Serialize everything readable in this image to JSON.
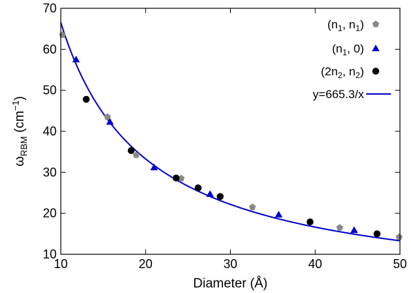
{
  "chart_data": {
    "type": "scatter",
    "xlabel": "Diameter (Å)",
    "ylabel": {
      "main": "ω",
      "sub": "RBM",
      "unit_open": " (cm",
      "unit_sup": "−1",
      "unit_close": ")"
    },
    "xlim": [
      10,
      50
    ],
    "ylim": [
      10,
      70
    ],
    "xticks": [
      10,
      20,
      30,
      40,
      50
    ],
    "yticks": [
      10,
      20,
      30,
      40,
      50,
      60,
      70
    ],
    "grid": false,
    "legend_position": "top-right",
    "series": [
      {
        "name": "(n1, n1)",
        "label_parts": [
          [
            "(n",
            ""
          ],
          [
            "1",
            "sub"
          ],
          [
            ", n",
            ""
          ],
          [
            "1",
            "sub"
          ],
          [
            ")",
            ""
          ]
        ],
        "marker": "pentagon",
        "color": "#888888",
        "x": [
          10.2,
          15.5,
          18.9,
          24.2,
          32.6,
          42.9,
          49.9
        ],
        "y": [
          63.5,
          43.5,
          34.2,
          28.5,
          21.5,
          16.5,
          14.2
        ]
      },
      {
        "name": "(n1, 0)",
        "label_parts": [
          [
            "(n",
            ""
          ],
          [
            "1",
            "sub"
          ],
          [
            ", 0)",
            ""
          ]
        ],
        "marker": "triangle",
        "color": "#0000cc",
        "x": [
          11.8,
          15.8,
          21.0,
          27.6,
          35.7,
          44.6
        ],
        "y": [
          57.5,
          42.3,
          31.2,
          24.7,
          19.7,
          15.9
        ]
      },
      {
        "name": "(2n2, n2)",
        "label_parts": [
          [
            "(2n",
            ""
          ],
          [
            "2",
            "sub"
          ],
          [
            ", n",
            ""
          ],
          [
            "2",
            "sub"
          ],
          [
            ")",
            ""
          ]
        ],
        "marker": "circle",
        "color": "#000000",
        "x": [
          13.0,
          18.3,
          23.6,
          26.2,
          28.8,
          39.4,
          47.3
        ],
        "y": [
          47.8,
          35.3,
          28.6,
          26.2,
          24.1,
          17.9,
          15.0
        ]
      }
    ],
    "fit": {
      "label": "y=665.3/x",
      "coefficient": 665.3,
      "color": "#0000cc"
    }
  }
}
